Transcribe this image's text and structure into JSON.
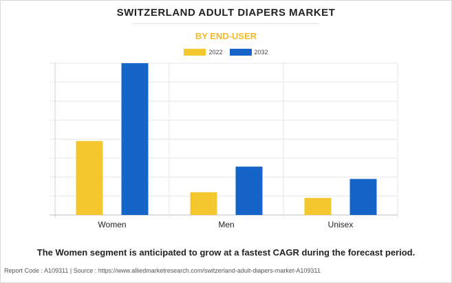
{
  "title": "SWITZERLAND ADULT DIAPERS MARKET",
  "subtitle": "BY END-USER",
  "colors": {
    "series_2022": "#f5c72f",
    "series_2032": "#1565c8",
    "subtitle": "#f4b92b"
  },
  "chart_data": {
    "type": "bar",
    "categories": [
      "Women",
      "Men",
      "Unisex"
    ],
    "series": [
      {
        "name": "2022",
        "values": [
          3.9,
          1.2,
          0.9
        ]
      },
      {
        "name": "2032",
        "values": [
          8.0,
          2.55,
          1.9
        ]
      }
    ],
    "ylim": [
      0,
      8
    ],
    "grid": true,
    "legend_position": "top"
  },
  "caption": "The Women segment is anticipated to grow at a fastest CAGR during the forecast period.",
  "footer": "Report Code : A109311  |  Source : https://www.alliedmarketresearch.com/switzerland-adult-diapers-market-A109311"
}
